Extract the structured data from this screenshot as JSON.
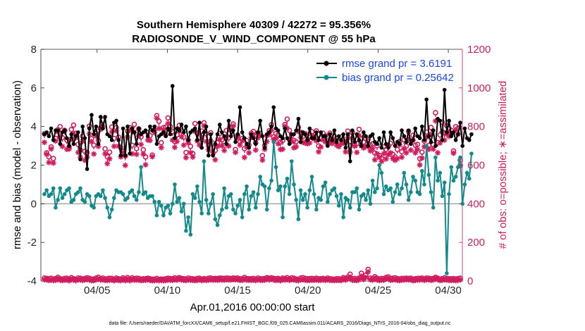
{
  "colors": {
    "rmse": "#000000",
    "bias": "#138a8a",
    "obs": "#d01c5c",
    "legend_text": "#1a47e6",
    "zero_line": "#a6a6a6"
  },
  "chart_data": {
    "type": "line",
    "title": "Southern Hemisphere 40309 / 42272 = 95.356%",
    "subtitle": "RADIOSONDE_V_WIND_COMPONENT @ 55 hPa",
    "xlabel": "Apr.01,2016 00:00:00 start",
    "ylabel_left": "rmse and bias (model - observation)",
    "ylabel_right": "# of obs: o=possible; ∗=assimilated",
    "xlim": [
      1,
      31
    ],
    "ylim_left": [
      -4,
      8
    ],
    "ylim_right": [
      0,
      1200
    ],
    "x_ticks": [
      5,
      10,
      15,
      20,
      25,
      30
    ],
    "x_tick_labels": [
      "04/05",
      "04/10",
      "04/15",
      "04/20",
      "04/25",
      "04/30"
    ],
    "y_left_ticks": [
      -4,
      -2,
      0,
      2,
      4,
      6,
      8
    ],
    "y_right_ticks": [
      0,
      200,
      400,
      600,
      800,
      1000,
      1200
    ],
    "legend": [
      {
        "label": "rmse grand pr = 3.6191",
        "series": "rmse"
      },
      {
        "label": "bias grand pr = 0.25642",
        "series": "bias"
      }
    ],
    "series": [
      {
        "name": "rmse",
        "axis": "left",
        "values": [
          3.6,
          3.7,
          3.5,
          3.9,
          3.3,
          3.8,
          3.8,
          3.1,
          3.7,
          3.8,
          3.4,
          3.0,
          3.6,
          3.1,
          3.5,
          3.7,
          2.3,
          4.0,
          3.4,
          1.8,
          3.9,
          4.6,
          3.6,
          4.0,
          3.1,
          4.5,
          3.9,
          4.5,
          3.6,
          3.5,
          3.3,
          4.2,
          4.3,
          3.3,
          2.5,
          3.9,
          2.5,
          4.0,
          2.6,
          3.9,
          3.7,
          3.1,
          3.9,
          3.6,
          3.7,
          3.8,
          3.5,
          4.0,
          3.8,
          4.0,
          3.1,
          3.5,
          3.6,
          3.7,
          3.5,
          3.9,
          3.6,
          6.1,
          3.4,
          3.9,
          3.8,
          4.1,
          3.7,
          4.0,
          3.3,
          3.7,
          3.8,
          3.9,
          3.3,
          4.2,
          2.9,
          3.7,
          4.0,
          2.5,
          3.6,
          2.5,
          3.1,
          3.6,
          4.1,
          3.7,
          3.5,
          3.1,
          4.3,
          3.5,
          3.8,
          3.2,
          3.6,
          5.0,
          3.7,
          3.4,
          3.1,
          2.9,
          3.6,
          3.4,
          3.1,
          3.7,
          4.3,
          3.5,
          2.9,
          3.6,
          3.7,
          4.0,
          5.0,
          3.9,
          3.8,
          3.5,
          3.4,
          3.9,
          3.4,
          3.1,
          3.6,
          3.6,
          3.8,
          4.4,
          3.2,
          3.7,
          3.6,
          3.3,
          3.9,
          3.4,
          3.4,
          3.7,
          3.3,
          3.7,
          3.5,
          3.5,
          3.0,
          3.6,
          3.3,
          3.8,
          3.2,
          3.5,
          3.3,
          3.6,
          2.9,
          3.6,
          2.2,
          3.8,
          3.2,
          3.6,
          3.3,
          3.0,
          3.7,
          3.5,
          3.0,
          3.5,
          3.6,
          3.2,
          3.1,
          3.4,
          2.9,
          3.7,
          3.1,
          2.9,
          3.7,
          3.4,
          3.0,
          3.2,
          3.1,
          3.8,
          3.5,
          3.2,
          3.8,
          3.1,
          3.3,
          3.9,
          3.5,
          3.4,
          4.0,
          3.3,
          5.4,
          3.5,
          3.2,
          3.8,
          3.0,
          4.4,
          4.3,
          3.3,
          5.9,
          3.7,
          4.3,
          3.5,
          3.7,
          3.3,
          3.6,
          4.2,
          3.0,
          3.9,
          3.4,
          3.3,
          3.6
        ]
      },
      {
        "name": "bias",
        "axis": "left",
        "values": [
          0.5,
          0.7,
          0.4,
          0.5,
          0.8,
          -0.2,
          0.2,
          0.8,
          0.3,
          0.5,
          0.7,
          0.8,
          0.1,
          0.2,
          0.5,
          0.6,
          0.8,
          0.2,
          0.1,
          0.5,
          0.4,
          -0.1,
          -0.2,
          0.4,
          0.5,
          0.4,
          0.7,
          0.3,
          -0.2,
          -0.7,
          -0.3,
          0.3,
          0.7,
          0.6,
          0.6,
          0.5,
          0.2,
          0.3,
          0.6,
          0.7,
          0.4,
          0.2,
          0.6,
          1.9,
          0.5,
          0.6,
          0.3,
          0.4,
          0.4,
          0.1,
          -0.6,
          0.1,
          -0.1,
          -0.6,
          -0.2,
          -0.1,
          -0.5,
          0.0,
          1.0,
          0.1,
          0.3,
          -0.4,
          0.0,
          -1.4,
          -0.7,
          -1.6,
          0.5,
          0.3,
          0.9,
          0.1,
          -0.5,
          2.2,
          0.2,
          -0.5,
          0.0,
          0.5,
          -0.8,
          -1.1,
          -0.6,
          -0.3,
          0.8,
          -0.2,
          0.4,
          0.5,
          -0.3,
          -0.5,
          -0.1,
          0.2,
          -0.7,
          0.5,
          0.9,
          -0.3,
          0.4,
          0.6,
          -0.2,
          0.5,
          1.4,
          1.0,
          0.9,
          -0.3,
          0.8,
          1.2,
          3.2,
          1.9,
          0.7,
          0.9,
          -0.7,
          0.9,
          1.3,
          0.5,
          2.2,
          1.0,
          0.2,
          -0.8,
          0.7,
          0.2,
          0.5,
          -0.2,
          0.7,
          1.4,
          0.5,
          -0.3,
          0.3,
          0.2,
          0.9,
          1.1,
          0.1,
          0.5,
          0.7,
          0.8,
          0.4,
          -0.1,
          0.5,
          -0.7,
          0.3,
          0.2,
          -0.2,
          0.6,
          0.6,
          0.8,
          -0.3,
          0.4,
          0.5,
          0.2,
          0.7,
          0.0,
          1.2,
          0.6,
          0.8,
          2.0,
          1.6,
          0.5,
          0.9,
          0.7,
          0.8,
          0.1,
          0.6,
          1.0,
          0.5,
          0.8,
          1.6,
          1.0,
          0.2,
          0.6,
          1.4,
          1.2,
          0.6,
          0.5,
          1.7,
          1.0,
          3.0,
          1.5,
          0.6,
          -0.2,
          2.4,
          1.2,
          1.6,
          0.4,
          1.1,
          -3.6,
          0.5,
          1.9,
          1.2,
          1.4,
          1.9,
          2.4,
          0.0,
          1.0,
          1.6,
          1.3,
          2.6
        ]
      },
      {
        "name": "obs_possible",
        "axis": "right",
        "marker": "o",
        "values": [
          757,
          658,
          638,
          689,
          629,
          733,
          778,
          794,
          737,
          775,
          724,
          689,
          779,
          802,
          760,
          702,
          673,
          745,
          666,
          660,
          797,
          732,
          698,
          758,
          722,
          787,
          828,
          679,
          638,
          662,
          792,
          733,
          789,
          740,
          684,
          667,
          642,
          771,
          789,
          698,
          806,
          680,
          782,
          741,
          674,
          637,
          763,
          747,
          647,
          777,
          851,
          822,
          711,
          789,
          792,
          839,
          794,
          768,
          717,
          752,
          801,
          772,
          740,
          660,
          724,
          692,
          655,
          810,
          760,
          739,
          771,
          814,
          757,
          696,
          762,
          709,
          671,
          711,
          759,
          725,
          697,
          774,
          737,
          791,
          808,
          675,
          749,
          716,
          732,
          680,
          722,
          698,
          760,
          769,
          710,
          761,
          759,
          644,
          696,
          749,
          773,
          804,
          741,
          758,
          751,
          714,
          722,
          805,
          833,
          775,
          749,
          723,
          716,
          791,
          765,
          743,
          758,
          723,
          745,
          767,
          741,
          772,
          694,
          737,
          760,
          746,
          720,
          760,
          727,
          744,
          734,
          714,
          741,
          720,
          713,
          771,
          695,
          763,
          703,
          706,
          780,
          731,
          714,
          731,
          727,
          699,
          705,
          657,
          695,
          645,
          629,
          689,
          676,
          697,
          708,
          651,
          637,
          676,
          717,
          664,
          726,
          694,
          769,
          716,
          749,
          698,
          702,
          628,
          662,
          719,
          766,
          697,
          790,
          700,
          866,
          712,
          751,
          817,
          761,
          799,
          785,
          774,
          668,
          794,
          786,
          620
        ]
      },
      {
        "name": "obs_assimilated",
        "axis": "right",
        "marker": "*",
        "values": [
          718,
          656,
          614,
          684,
          611,
          725,
          773,
          750,
          697,
          778,
          682,
          684,
          735,
          762,
          742,
          666,
          640,
          723,
          625,
          642,
          762,
          722,
          658,
          751,
          697,
          785,
          798,
          659,
          608,
          633,
          772,
          698,
          778,
          698,
          643,
          666,
          599,
          745,
          780,
          659,
          770,
          656,
          751,
          707,
          657,
          602,
          730,
          728,
          644,
          768,
          843,
          790,
          691,
          784,
          756,
          816,
          783,
          730,
          692,
          723,
          779,
          747,
          704,
          639,
          715,
          665,
          642,
          774,
          725,
          704,
          746,
          804,
          723,
          680,
          725,
          665,
          628,
          697,
          734,
          701,
          676,
          748,
          699,
          782,
          802,
          666,
          744,
          704,
          726,
          640,
          694,
          664,
          744,
          758,
          678,
          741,
          754,
          626,
          682,
          722,
          758,
          780,
          734,
          738,
          711,
          681,
          683,
          801,
          790,
          737,
          722,
          690,
          695,
          774,
          745,
          718,
          714,
          711,
          715,
          752,
          735,
          726,
          669,
          694,
          731,
          721,
          712,
          718,
          712,
          727,
          703,
          696,
          711,
          715,
          669,
          743,
          668,
          738,
          698,
          666,
          753,
          700,
          689,
          698,
          696,
          674,
          685,
          628,
          659,
          640,
          619,
          660,
          632,
          654,
          664,
          634,
          625,
          634,
          705,
          641,
          687,
          664,
          733,
          678,
          729,
          664,
          681,
          601,
          637,
          695,
          744,
          682,
          760,
          683,
          829,
          664,
          715,
          773,
          730,
          760,
          749,
          765,
          662,
          783,
          760,
          598
        ]
      },
      {
        "name": "obs_possible_low",
        "axis": "right",
        "marker": "o",
        "values": [
          10,
          8,
          6,
          9,
          4,
          7,
          14,
          6,
          5,
          8,
          9,
          4,
          12,
          6,
          3,
          10,
          9,
          5,
          8,
          11,
          9,
          4,
          5,
          10,
          14,
          7,
          10,
          5,
          6,
          9,
          8,
          3,
          10,
          6,
          4,
          11,
          4,
          12,
          4,
          11,
          7,
          9,
          8,
          4,
          6,
          6,
          9,
          6,
          4,
          4,
          8,
          3,
          5,
          4,
          6,
          9,
          7,
          6,
          11,
          8,
          12,
          8,
          6,
          5,
          10,
          7,
          6,
          4,
          8,
          9,
          4,
          7,
          5,
          9,
          10,
          7,
          8,
          7,
          10,
          9,
          8,
          10,
          9,
          8,
          10,
          9,
          10,
          6,
          6,
          13,
          7,
          6,
          6,
          8,
          4,
          10,
          6,
          6,
          7,
          12,
          9,
          11,
          8,
          6,
          8,
          4,
          10,
          7,
          12,
          5,
          11,
          9,
          5,
          3,
          10,
          12,
          8,
          6,
          7,
          8,
          6,
          9,
          6,
          6,
          8,
          5,
          10,
          6,
          5,
          4,
          6,
          6,
          5,
          12,
          8,
          15,
          30,
          6,
          8,
          5,
          10,
          35,
          12,
          25,
          55,
          10,
          7,
          17,
          9,
          5,
          8,
          6,
          13,
          16,
          8,
          9,
          11,
          7,
          5,
          8,
          8,
          9,
          8,
          9,
          4,
          6,
          8,
          8,
          10,
          5,
          10,
          9,
          6,
          8,
          14,
          9,
          5,
          6,
          11,
          8,
          6,
          6,
          7,
          5,
          7,
          9
        ]
      },
      {
        "name": "obs_assimilated_low",
        "axis": "right",
        "marker": "*",
        "values": [
          7,
          7,
          3,
          5,
          4,
          4,
          11,
          5,
          3,
          5,
          6,
          2,
          9,
          6,
          3,
          7,
          6,
          4,
          6,
          8,
          6,
          2,
          3,
          6,
          9,
          7,
          6,
          5,
          3,
          5,
          6,
          2,
          8,
          3,
          3,
          9,
          2,
          10,
          2,
          7,
          5,
          6,
          5,
          3,
          4,
          5,
          7,
          4,
          2,
          3,
          4,
          3,
          5,
          3,
          3,
          6,
          5,
          4,
          7,
          5,
          10,
          6,
          4,
          3,
          6,
          5,
          4,
          3,
          4,
          7,
          3,
          5,
          4,
          5,
          7,
          5,
          7,
          4,
          8,
          6,
          5,
          7,
          6,
          6,
          8,
          7,
          7,
          4,
          4,
          9,
          5,
          5,
          5,
          5,
          3,
          7,
          5,
          4,
          5,
          10,
          6,
          9,
          6,
          3,
          6,
          2,
          8,
          5,
          8,
          4,
          7,
          6,
          4,
          3,
          6,
          7,
          5,
          3,
          4,
          5,
          4,
          6,
          4,
          5,
          6,
          4,
          7,
          4,
          4,
          3,
          4,
          4,
          3,
          10,
          5,
          12,
          21,
          5,
          4,
          3,
          7,
          25,
          8,
          19,
          47,
          7,
          5,
          14,
          6,
          3,
          5,
          5,
          11,
          13,
          4,
          6,
          7,
          4,
          3,
          5,
          6,
          7,
          7,
          7,
          2,
          4,
          6,
          6,
          8,
          4,
          8,
          7,
          4,
          6,
          12,
          8,
          3,
          5,
          7,
          5,
          5,
          3,
          5,
          2,
          5,
          6
        ]
      }
    ]
  },
  "footer": {
    "data_file": "data file: /Users/raeder/DAI/ATM_forcXX/CAM6_setup/f.e21.FHIST_BGC.f09_025.CAM6assim.011/ACARS_2016/Diags_NTrS_2016-04/obs_diag_output.nc"
  }
}
